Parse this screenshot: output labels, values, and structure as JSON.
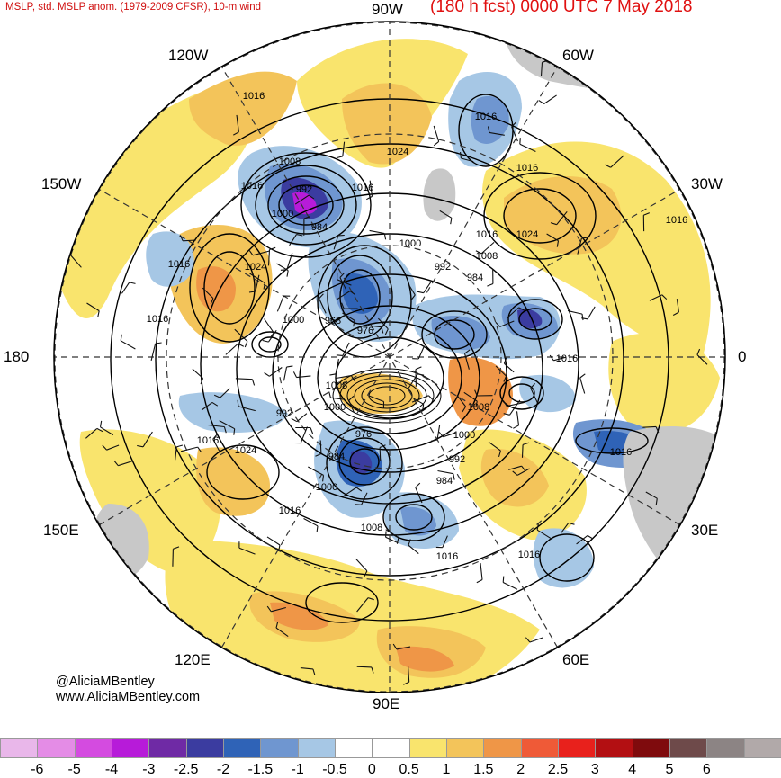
{
  "header": {
    "left_title": "MSLP, std. MSLP anom. (1979-2009 CFSR), 10-m wind",
    "right_title": "(180 h fcst) 0000 UTC 7 May 2018"
  },
  "longitude_labels": {
    "top": "90W",
    "bottom": "90E",
    "left": "180",
    "right": "0",
    "upper_left": "120W",
    "upper_right": "60W",
    "left_upper": "150W",
    "right_upper": "30W",
    "left_lower": "150E",
    "right_lower": "30E",
    "lower_left": "120E",
    "lower_right": "60E"
  },
  "credits": {
    "handle": "@AliciaMBentley",
    "website": "www.AliciaMBentley.com"
  },
  "isobar_labels": [
    "1016",
    "1024",
    "1008",
    "992",
    "1016",
    "1000",
    "984",
    "1016",
    "1016",
    "1016",
    "1016",
    "1024",
    "1008",
    "992",
    "984",
    "1000",
    "1016",
    "1000",
    "968",
    "976",
    "1024",
    "1016",
    "1008",
    "992",
    "1000",
    "1008",
    "1000",
    "1016",
    "976",
    "984",
    "1000",
    "992",
    "984",
    "1016",
    "1024",
    "1008",
    "1016",
    "1016",
    "1016",
    "1016",
    "1016"
  ],
  "colorbar": {
    "colors": [
      "#e9b7ea",
      "#e48ce6",
      "#d44be0",
      "#b71bd9",
      "#6f2aa5",
      "#3b3ca0",
      "#2f63b7",
      "#6f96d0",
      "#a6c7e5",
      "#ffffff",
      "#ffffff",
      "#f9e46d",
      "#f3c45a",
      "#ef9647",
      "#ef5a37",
      "#e8211c",
      "#b30f12",
      "#7f0b0d",
      "#6e4a4a",
      "#8c8484",
      "#b1a9a9"
    ],
    "ticks": [
      "-6",
      "-5",
      "-4",
      "-3",
      "-2.5",
      "-2",
      "-1.5",
      "-1",
      "-0.5",
      "0",
      "0.5",
      "1",
      "1.5",
      "2",
      "2.5",
      "3",
      "4",
      "5",
      "6"
    ]
  }
}
